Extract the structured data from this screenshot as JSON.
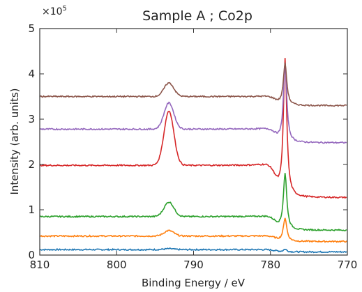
{
  "chart_data": {
    "type": "line",
    "title": "Sample A ; Co2p",
    "xlabel": "Binding Energy / eV",
    "ylabel": "Intensity (arb. units)",
    "y_multiplier": "×10",
    "y_multiplier_exponent": "5",
    "xlim": [
      810,
      770
    ],
    "ylim": [
      0,
      5
    ],
    "x_reversed": true,
    "x_ticks": [
      810,
      800,
      790,
      780,
      770
    ],
    "y_ticks": [
      0,
      1,
      2,
      3,
      4,
      5
    ],
    "grid": false,
    "peaks": [
      793.2,
      778.1
    ],
    "series": [
      {
        "color": "#1f77b4",
        "baseline_left": 0.12,
        "baseline_right": 0.07,
        "peak1": 0.02,
        "peak2": 0.06
      },
      {
        "color": "#ff7f0e",
        "baseline_left": 0.42,
        "baseline_right": 0.3,
        "peak1": 0.12,
        "peak2": 0.52
      },
      {
        "color": "#2ca02c",
        "baseline_left": 0.85,
        "baseline_right": 0.55,
        "peak1": 0.32,
        "peak2": 1.25
      },
      {
        "color": "#d62728",
        "baseline_left": 1.98,
        "baseline_right": 1.27,
        "peak1": 1.2,
        "peak2": 3.05
      },
      {
        "color": "#9467bd",
        "baseline_left": 2.78,
        "baseline_right": 2.48,
        "peak1": 0.58,
        "peak2": 1.7
      },
      {
        "color": "#8c564b",
        "baseline_left": 3.5,
        "baseline_right": 3.3,
        "peak1": 0.3,
        "peak2": 0.93
      }
    ]
  }
}
